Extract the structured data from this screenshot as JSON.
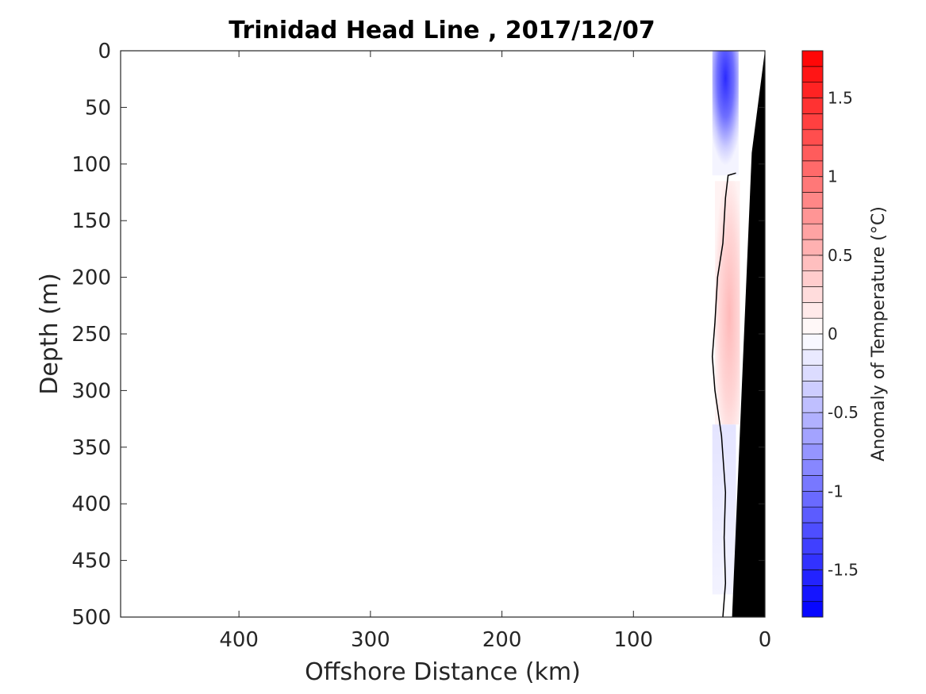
{
  "chart_data": {
    "type": "heatmap",
    "title": "Trinidad Head Line , 2017/12/07",
    "xlabel": "Offshore Distance (km)",
    "ylabel": "Depth (m)",
    "xlim": [
      490,
      0
    ],
    "ylim": [
      0,
      500
    ],
    "x_reversed": true,
    "y_reversed": true,
    "xticks": [
      400,
      300,
      200,
      100,
      0
    ],
    "xtick_labels": [
      "400",
      "300",
      "200",
      "100",
      "0"
    ],
    "yticks": [
      0,
      50,
      100,
      150,
      200,
      250,
      300,
      350,
      400,
      450,
      500
    ],
    "ytick_labels": [
      "0",
      "50",
      "100",
      "150",
      "200",
      "250",
      "300",
      "350",
      "400",
      "450",
      "500"
    ],
    "colorbar": {
      "label": "Anomaly of Temperature (°C)",
      "range": [
        -1.8,
        1.8
      ],
      "levels": 36,
      "ticks": [
        -1.5,
        -1,
        -0.5,
        0,
        0.5,
        1,
        1.5
      ],
      "tick_labels": [
        "-1.5",
        "-1",
        "-0.5",
        "0",
        "0.5",
        "1",
        "1.5"
      ],
      "colormap": "blue-white-red",
      "colors": {
        "negative": "#0000ff",
        "zero": "#ffffff",
        "positive": "#ff0000"
      }
    },
    "field_patches": [
      {
        "name": "near-surface cold anomaly",
        "x_km": [
          40,
          20
        ],
        "depth_m": [
          0,
          110
        ],
        "core_depth_m": 25,
        "value": -1.2
      },
      {
        "name": "warm anomaly along slope",
        "x_km": [
          38,
          18
        ],
        "depth_m": [
          115,
          330
        ],
        "core_depth_m": 230,
        "value": 0.45
      },
      {
        "name": "weak cold anomaly",
        "x_km": [
          40,
          22
        ],
        "depth_m": [
          330,
          480
        ],
        "core_depth_m": 360,
        "value": -0.2
      }
    ],
    "zero_contour": [
      [
        22,
        108
      ],
      [
        28,
        110
      ],
      [
        30,
        130
      ],
      [
        32,
        170
      ],
      [
        36,
        200
      ],
      [
        38,
        240
      ],
      [
        40,
        270
      ],
      [
        38,
        300
      ],
      [
        33,
        340
      ],
      [
        30,
        390
      ],
      [
        31,
        430
      ],
      [
        30,
        470
      ],
      [
        32,
        500
      ]
    ],
    "bathymetry_mask": {
      "color": "#000000",
      "bottom_points": [
        [
          0,
          0
        ],
        [
          10,
          90
        ],
        [
          25,
          500
        ],
        [
          0,
          500
        ]
      ]
    },
    "no_data_strip": {
      "x_km": [
        19,
        1
      ],
      "depth_m": [
        0,
        500
      ]
    }
  }
}
